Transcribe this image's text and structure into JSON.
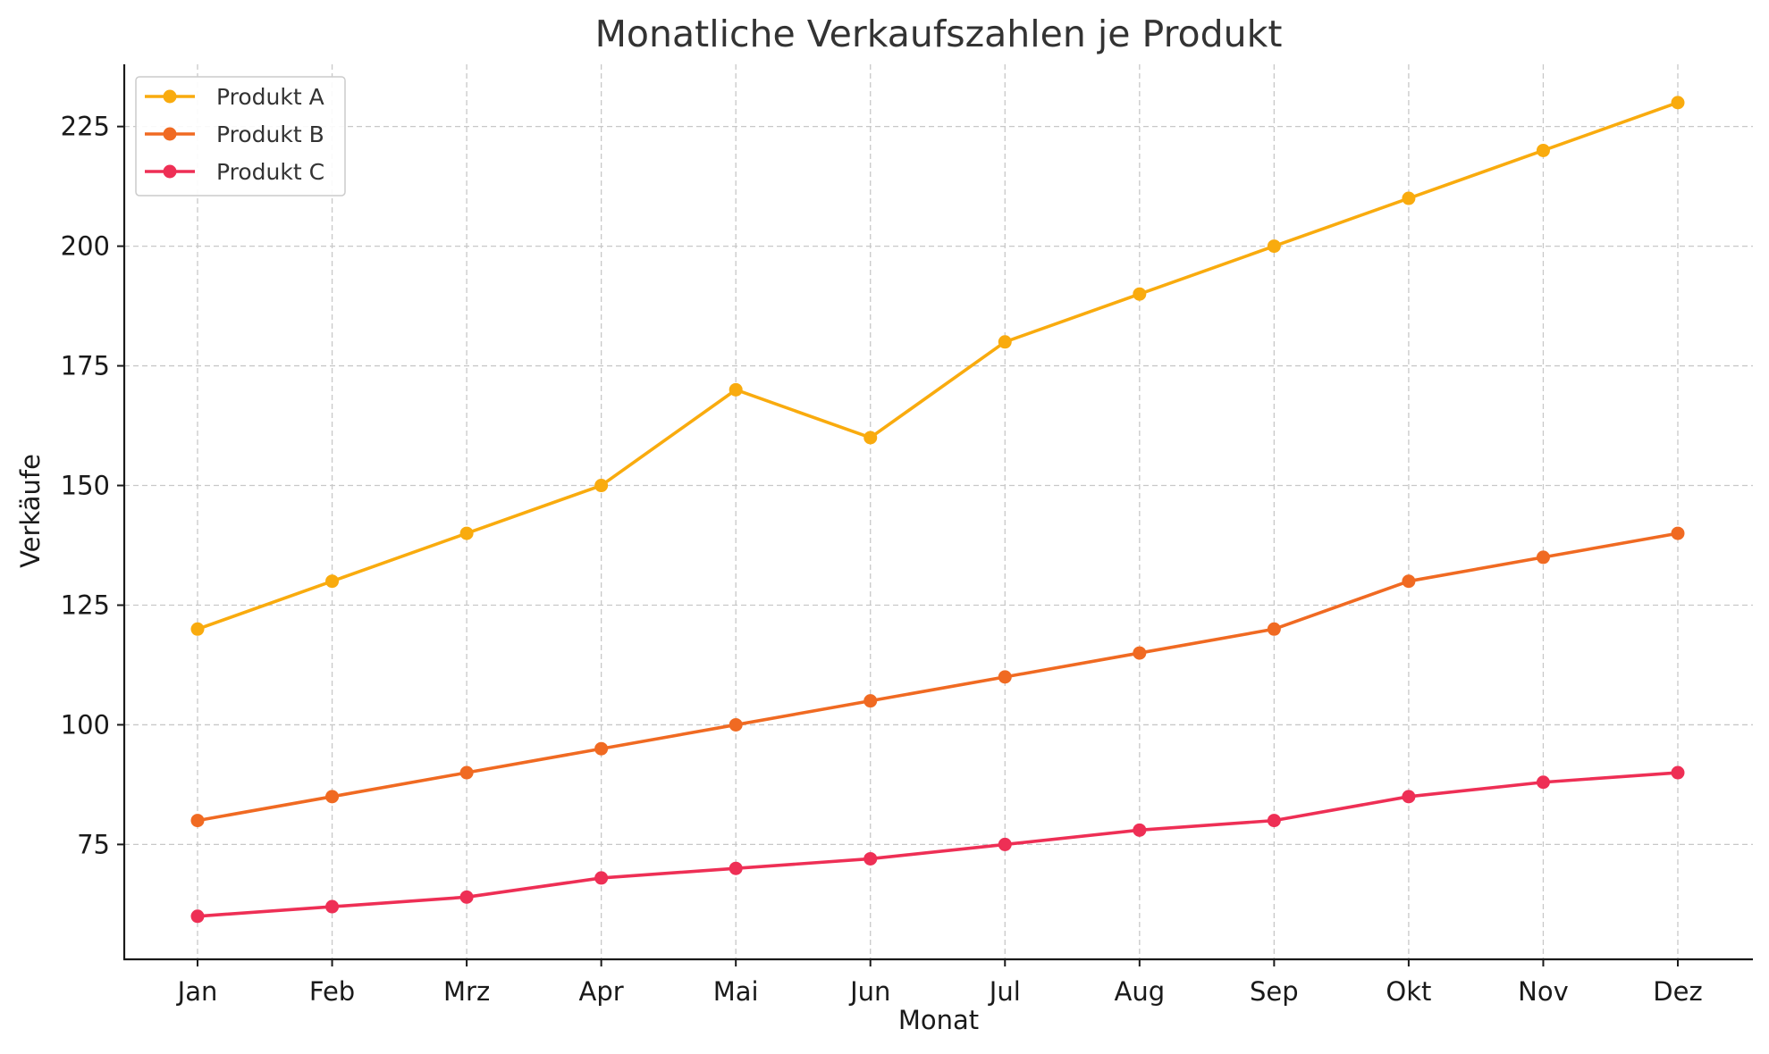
{
  "chart_data": {
    "type": "line",
    "title": "Monatliche Verkaufszahlen je Produkt",
    "xlabel": "Monat",
    "ylabel": "Verkäufe",
    "categories": [
      "Jan",
      "Feb",
      "Mrz",
      "Apr",
      "Mai",
      "Jun",
      "Jul",
      "Aug",
      "Sep",
      "Okt",
      "Nov",
      "Dez"
    ],
    "ylim": [
      51,
      238
    ],
    "yticks": [
      75,
      100,
      125,
      150,
      175,
      200,
      225
    ],
    "grid": true,
    "legend_position": "top-left",
    "series": [
      {
        "name": "Produkt A",
        "color": "#F9AB0E",
        "values": [
          120,
          130,
          140,
          150,
          170,
          160,
          180,
          190,
          200,
          210,
          220,
          230
        ]
      },
      {
        "name": "Produkt B",
        "color": "#F06A22",
        "values": [
          80,
          85,
          90,
          95,
          100,
          105,
          110,
          115,
          120,
          130,
          135,
          140
        ]
      },
      {
        "name": "Produkt C",
        "color": "#EE2F55",
        "values": [
          60,
          62,
          64,
          68,
          70,
          72,
          75,
          78,
          80,
          85,
          88,
          90
        ]
      }
    ]
  }
}
